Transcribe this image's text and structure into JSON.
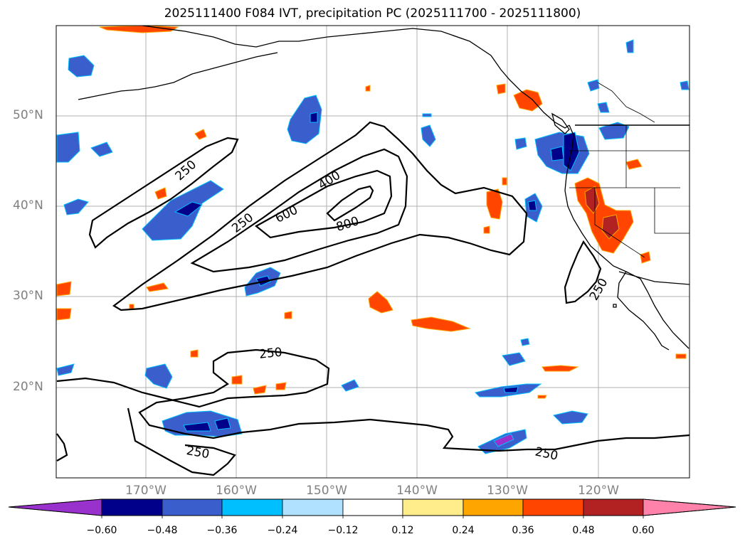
{
  "title": "2025111400 F084 IVT, precipitation PC (2025111700 - 2025111800)",
  "latitude_labels": [
    "50°N",
    "40°N",
    "30°N",
    "20°N"
  ],
  "longitude_labels": [
    "170°W",
    "160°W",
    "150°W",
    "140°W",
    "130°W",
    "120°W"
  ],
  "ivt_contour_labels": [
    "250",
    "400",
    "600",
    "800",
    "250",
    "250",
    "250",
    "250"
  ],
  "colorbar": {
    "tick_labels": [
      "−0.60",
      "−0.48",
      "−0.36",
      "−0.24",
      "−0.12",
      "0.12",
      "0.24",
      "0.36",
      "0.48",
      "0.60"
    ],
    "colors": [
      "#9932cc",
      "#00008b",
      "#3a5fcd",
      "#00bfff",
      "#b0e2ff",
      "#ffffff",
      "#ffec8b",
      "#ffa500",
      "#ff4500",
      "#b22222",
      "#ff82ab"
    ]
  },
  "colors": {
    "ivt_contour": "#000000",
    "coastline": "#000000",
    "grid": "#b0b0b0",
    "axis_label": "#808080"
  }
}
